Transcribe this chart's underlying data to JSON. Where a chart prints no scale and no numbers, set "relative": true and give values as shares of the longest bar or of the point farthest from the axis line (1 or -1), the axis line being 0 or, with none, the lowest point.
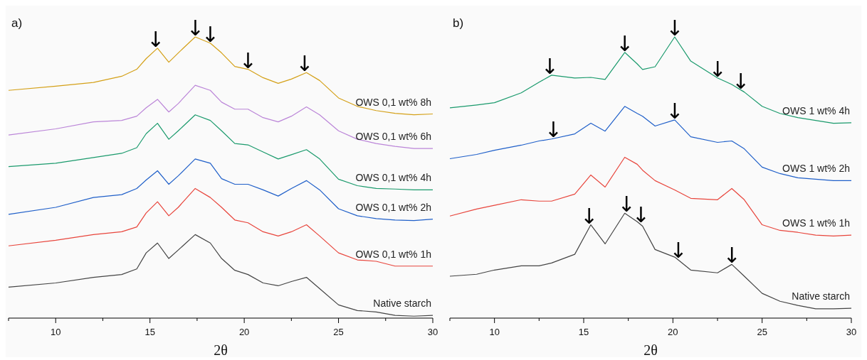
{
  "chart_data": [
    {
      "type": "line",
      "title": "a)",
      "xlabel": "2θ",
      "relative": true,
      "xlim": [
        7.5,
        30
      ],
      "xticks": [
        {
          "value": 7.5,
          "label": null
        },
        10,
        {
          "value": 12.5,
          "label": null
        },
        15,
        {
          "value": 17.5,
          "label": null
        },
        20,
        {
          "value": 22.5,
          "label": null
        },
        25,
        {
          "value": 27.5,
          "label": null
        },
        30
      ],
      "x": [
        7.5,
        10,
        12,
        13.5,
        14.3,
        14.8,
        15.4,
        16,
        16.5,
        17.4,
        18.2,
        18.8,
        19.5,
        20.2,
        21,
        21.8,
        22.5,
        23.3,
        24,
        25,
        26,
        27,
        28,
        29,
        30
      ],
      "series": [
        {
          "name": "OWS 0,1 wt% 8h",
          "color": "#d4a017",
          "values": [
            0.81,
            0.825,
            0.838,
            0.86,
            0.885,
            0.923,
            0.96,
            0.91,
            0.943,
            1.0,
            0.978,
            0.943,
            0.895,
            0.885,
            0.855,
            0.835,
            0.85,
            0.873,
            0.845,
            0.783,
            0.753,
            0.738,
            0.728,
            0.723,
            0.726
          ]
        },
        {
          "name": "OWS 0,1 wt% 6h",
          "color": "#bb85d8",
          "values": [
            0.651,
            0.673,
            0.698,
            0.703,
            0.718,
            0.748,
            0.778,
            0.733,
            0.763,
            0.828,
            0.81,
            0.768,
            0.743,
            0.743,
            0.713,
            0.698,
            0.718,
            0.751,
            0.723,
            0.666,
            0.636,
            0.621,
            0.611,
            0.603,
            0.603
          ]
        },
        {
          "name": "OWS 0,1 wt% 4h",
          "color": "#1a9a6c",
          "values": [
            0.539,
            0.551,
            0.571,
            0.586,
            0.606,
            0.656,
            0.693,
            0.636,
            0.666,
            0.723,
            0.703,
            0.666,
            0.621,
            0.616,
            0.591,
            0.566,
            0.581,
            0.599,
            0.566,
            0.494,
            0.471,
            0.461,
            0.459,
            0.456,
            0.456
          ]
        },
        {
          "name": "OWS 0,1 wt% 2h",
          "color": "#1f5fc9",
          "values": [
            0.369,
            0.394,
            0.429,
            0.439,
            0.461,
            0.491,
            0.524,
            0.476,
            0.506,
            0.566,
            0.551,
            0.496,
            0.476,
            0.476,
            0.456,
            0.434,
            0.461,
            0.489,
            0.456,
            0.389,
            0.364,
            0.354,
            0.349,
            0.347,
            0.352
          ]
        },
        {
          "name": "OWS 0,1 wt% 1h",
          "color": "#e8453c",
          "values": [
            0.257,
            0.277,
            0.297,
            0.307,
            0.324,
            0.374,
            0.414,
            0.364,
            0.394,
            0.461,
            0.429,
            0.394,
            0.349,
            0.339,
            0.307,
            0.292,
            0.307,
            0.332,
            0.292,
            0.232,
            0.207,
            0.202,
            0.185,
            0.185,
            0.185
          ]
        },
        {
          "name": "Native starch",
          "color": "#444444",
          "values": [
            0.11,
            0.125,
            0.145,
            0.155,
            0.175,
            0.232,
            0.267,
            0.212,
            0.242,
            0.297,
            0.267,
            0.212,
            0.17,
            0.155,
            0.125,
            0.115,
            0.13,
            0.145,
            0.105,
            0.047,
            0.027,
            0.022,
            0.01,
            0.007,
            0.01
          ]
        }
      ],
      "annotations": [
        {
          "text": "↓",
          "x": 15.3,
          "y": 0.96
        },
        {
          "text": "↓",
          "x": 17.4,
          "y": 1.0
        },
        {
          "text": "↓",
          "x": 18.2,
          "y": 0.978
        },
        {
          "text": "↓",
          "x": 20.2,
          "y": 0.885
        },
        {
          "text": "↓",
          "x": 23.2,
          "y": 0.873
        }
      ]
    },
    {
      "type": "line",
      "title": "b)",
      "xlabel": "2θ",
      "relative": true,
      "xlim": [
        7.5,
        30
      ],
      "xticks": [
        {
          "value": 7.5,
          "label": null
        },
        10,
        {
          "value": 12.5,
          "label": null
        },
        15,
        {
          "value": 17.5,
          "label": null
        },
        20,
        {
          "value": 22.5,
          "label": null
        },
        25,
        {
          "value": 27.5,
          "label": null
        },
        30
      ],
      "x": [
        7.5,
        9,
        10,
        11.5,
        12.5,
        13.2,
        14.5,
        15.4,
        16.2,
        17.3,
        18,
        18.3,
        19,
        20.1,
        21,
        22.5,
        23.3,
        24,
        25,
        26,
        27,
        28,
        29,
        30
      ],
      "series": [
        {
          "name": "OWS 1 wt% 4h",
          "color": "#1a9a6c",
          "values": [
            0.748,
            0.758,
            0.766,
            0.801,
            0.839,
            0.864,
            0.854,
            0.856,
            0.849,
            0.945,
            0.904,
            0.884,
            0.894,
            1.0,
            0.914,
            0.854,
            0.831,
            0.804,
            0.753,
            0.728,
            0.713,
            0.703,
            0.693,
            0.695
          ]
        },
        {
          "name": "OWS 1 wt% 2h",
          "color": "#1f5fc9",
          "values": [
            0.567,
            0.582,
            0.597,
            0.615,
            0.63,
            0.637,
            0.655,
            0.693,
            0.665,
            0.753,
            0.728,
            0.718,
            0.683,
            0.705,
            0.645,
            0.625,
            0.63,
            0.602,
            0.537,
            0.514,
            0.499,
            0.494,
            0.489,
            0.489
          ]
        },
        {
          "name": "OWS 1 wt% 1h",
          "color": "#e8453c",
          "values": [
            0.363,
            0.388,
            0.401,
            0.421,
            0.416,
            0.416,
            0.441,
            0.509,
            0.466,
            0.572,
            0.547,
            0.526,
            0.489,
            0.456,
            0.426,
            0.421,
            0.461,
            0.421,
            0.332,
            0.312,
            0.305,
            0.295,
            0.292,
            0.295
          ]
        },
        {
          "name": "Native starch",
          "color": "#444444",
          "values": [
            0.149,
            0.156,
            0.171,
            0.186,
            0.186,
            0.196,
            0.227,
            0.332,
            0.264,
            0.373,
            0.343,
            0.327,
            0.244,
            0.217,
            0.171,
            0.161,
            0.191,
            0.149,
            0.088,
            0.06,
            0.045,
            0.033,
            0.033,
            0.035
          ]
        }
      ],
      "annotations": [
        {
          "text": "↓",
          "x": 13.1,
          "y": 0.864
        },
        {
          "text": "↓",
          "x": 17.3,
          "y": 0.945
        },
        {
          "text": "↓",
          "x": 20.1,
          "y": 1.0
        },
        {
          "text": "↓",
          "x": 22.5,
          "y": 0.854
        },
        {
          "text": "↓",
          "x": 23.8,
          "y": 0.81
        },
        {
          "text": "↓",
          "x": 13.3,
          "y": 0.64
        },
        {
          "text": "↓",
          "x": 20.1,
          "y": 0.705
        },
        {
          "text": "↓",
          "x": 15.3,
          "y": 0.332
        },
        {
          "text": "↓",
          "x": 17.4,
          "y": 0.373
        },
        {
          "text": "↓",
          "x": 18.2,
          "y": 0.335
        },
        {
          "text": "↓",
          "x": 20.3,
          "y": 0.21
        },
        {
          "text": "↓",
          "x": 23.3,
          "y": 0.191
        }
      ]
    }
  ]
}
